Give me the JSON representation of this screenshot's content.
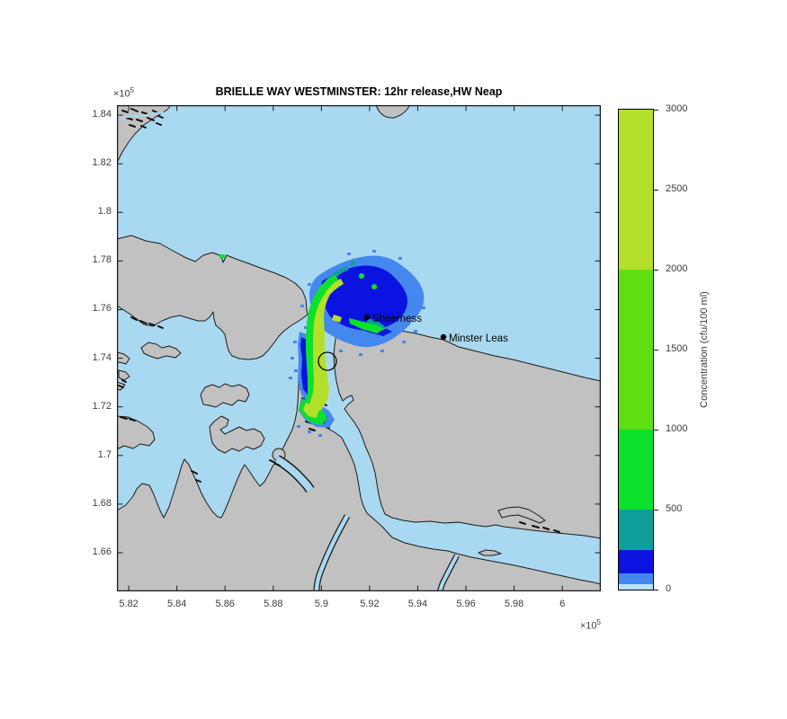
{
  "palette": {
    "water": "#a9d9f0",
    "land": "#c1c1c1",
    "coast": "#1b1b1b",
    "tick_text": "#3d3d3d",
    "label_text": "#000000"
  },
  "chart_data": {
    "type": "contour_map",
    "title": "BRIELLE WAY WESTMINSTER: 12hr release,HW Neap",
    "axes": {
      "x": {
        "lim": [
          5.8151,
          6.016
        ],
        "exponent_prefix": "×10",
        "exponent_power": "5",
        "ticks": [
          {
            "value": 5.82,
            "label": "5.82"
          },
          {
            "value": 5.84,
            "label": "5.84"
          },
          {
            "value": 5.86,
            "label": "5.86"
          },
          {
            "value": 5.88,
            "label": "5.88"
          },
          {
            "value": 5.9,
            "label": "5.9"
          },
          {
            "value": 5.92,
            "label": "5.92"
          },
          {
            "value": 5.94,
            "label": "5.94"
          },
          {
            "value": 5.96,
            "label": "5.96"
          },
          {
            "value": 5.98,
            "label": "5.98"
          },
          {
            "value": 6.0,
            "label": "6"
          }
        ]
      },
      "y": {
        "lim": [
          1.6441,
          1.8441
        ],
        "exponent_prefix": "×10",
        "exponent_power": "5",
        "ticks": [
          {
            "value": 1.84,
            "label": "1.84"
          },
          {
            "value": 1.82,
            "label": "1.82"
          },
          {
            "value": 1.8,
            "label": "1.8"
          },
          {
            "value": 1.78,
            "label": "1.78"
          },
          {
            "value": 1.76,
            "label": "1.76"
          },
          {
            "value": 1.74,
            "label": "1.74"
          },
          {
            "value": 1.72,
            "label": "1.72"
          },
          {
            "value": 1.7,
            "label": "1.7"
          },
          {
            "value": 1.68,
            "label": "1.68"
          },
          {
            "value": 1.66,
            "label": "1.66"
          }
        ]
      }
    },
    "colorbar_label": "Concentration (cfu/100 ml)",
    "colorbar_range": [
      0,
      3000
    ],
    "colorbar_ticks": [
      {
        "value": 0,
        "label": "0"
      },
      {
        "value": 500,
        "label": "500"
      },
      {
        "value": 1000,
        "label": "1000"
      },
      {
        "value": 1500,
        "label": "1500"
      },
      {
        "value": 2000,
        "label": "2000"
      },
      {
        "value": 2500,
        "label": "2500"
      },
      {
        "value": 3000,
        "label": "3000"
      }
    ],
    "contour_levels": [
      0,
      35,
      100,
      250,
      500,
      1000,
      2000,
      3000
    ],
    "band_colors_hex": [
      "#b7e3f9",
      "#4487ef",
      "#0b13e0",
      "#0f9e99",
      "#0ce12b",
      "#5fdf12",
      "#b4df2b"
    ],
    "markers": [
      {
        "name": "Sheerness",
        "type": "dot-label",
        "x_e5": 5.919,
        "y_e5": 1.757
      },
      {
        "name": "Minster Leas",
        "type": "dot-label",
        "x_e5": 5.951,
        "y_e5": 1.749
      },
      {
        "name": "release-site-circle",
        "type": "circle",
        "x_e5": 5.902,
        "y_e5": 1.739
      }
    ],
    "plume_summary": "Sewage plume from a 12hr release at Brielle Way, Sheerness at HW Neap tide: highest band >2000 cfu/100ml (yellow-green) runs along the Medway mouth channel past Queenborough; concentration falls through green (500-1000), teal (250-500), dark blue (100-250) and light blue (35-100) bands in a fan spreading north-east of Sheerness into the Thames estuary."
  }
}
